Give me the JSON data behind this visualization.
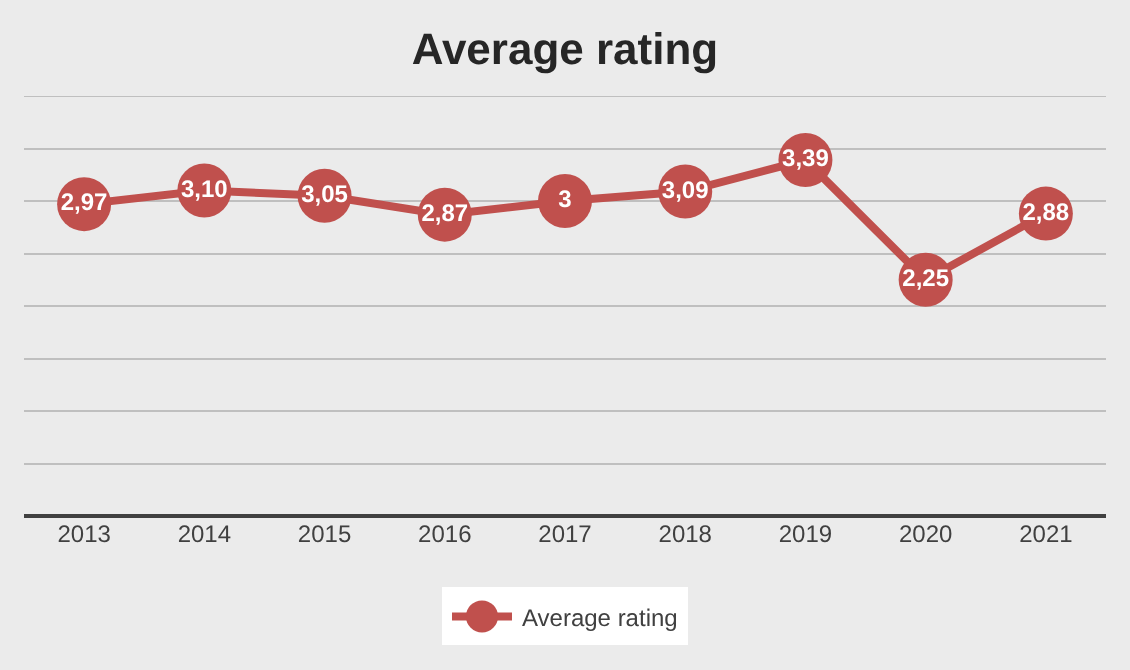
{
  "chart_data": {
    "type": "line",
    "title": "Average rating",
    "categories": [
      "2013",
      "2014",
      "2015",
      "2016",
      "2017",
      "2018",
      "2019",
      "2020",
      "2021"
    ],
    "series": [
      {
        "name": "Average rating",
        "color": "#c0504d",
        "values": [
          2.97,
          3.1,
          3.05,
          2.87,
          3,
          3.09,
          3.39,
          2.25,
          2.88
        ],
        "value_labels": [
          "2,97",
          "3,10",
          "3,05",
          "2,87",
          "3",
          "3,09",
          "3,39",
          "2,25",
          "2,88"
        ]
      }
    ],
    "ylim": [
      0,
      4
    ],
    "yticks": [
      {
        "value": 0,
        "label": null
      },
      {
        "value": 0.5,
        "label": null
      },
      {
        "value": 1,
        "label": null
      },
      {
        "value": 1.5,
        "label": null
      },
      {
        "value": 2,
        "label": null
      },
      {
        "value": 2.5,
        "label": null
      },
      {
        "value": 3,
        "label": null
      },
      {
        "value": 3.5,
        "label": null
      },
      {
        "value": 4,
        "label": null
      }
    ],
    "tick_labels": "x",
    "grid": "y",
    "legend": "bottom",
    "marker": "circle",
    "line_style": "solid"
  }
}
